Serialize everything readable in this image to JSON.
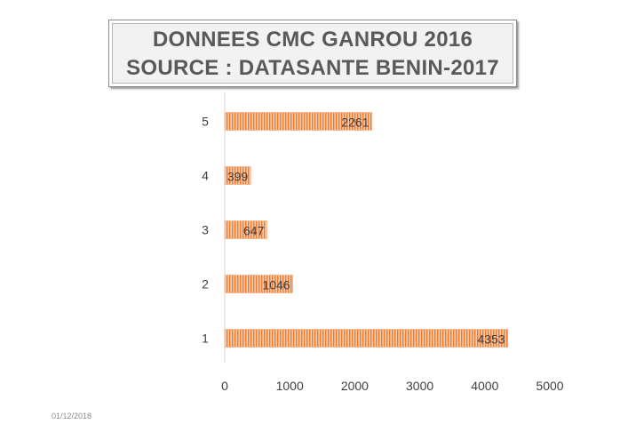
{
  "chart_data": {
    "type": "bar",
    "orientation": "horizontal",
    "title": [
      "DONNEES CMC GANROU 2016",
      "SOURCE : DATASANTE BENIN-2017"
    ],
    "categories": [
      "1",
      "2",
      "3",
      "4",
      "5"
    ],
    "values": [
      4353,
      1046,
      647,
      399,
      2261
    ],
    "data_labels": [
      "4353",
      "1046",
      "647",
      "399",
      "2261"
    ],
    "xlim": [
      0,
      5000
    ],
    "x_ticks": [
      0,
      1000,
      2000,
      3000,
      4000,
      5000
    ],
    "x_tick_labels": [
      "0",
      "1000",
      "2000",
      "3000",
      "4000",
      "5000"
    ],
    "grid": false,
    "legend": "none",
    "colors": {
      "bar_fill": "#f4b183",
      "bar_stripe": "#ed7d31",
      "axis": "#d9d9d9",
      "text": "#404040"
    }
  },
  "footer": {
    "date": "01/12/2018"
  }
}
